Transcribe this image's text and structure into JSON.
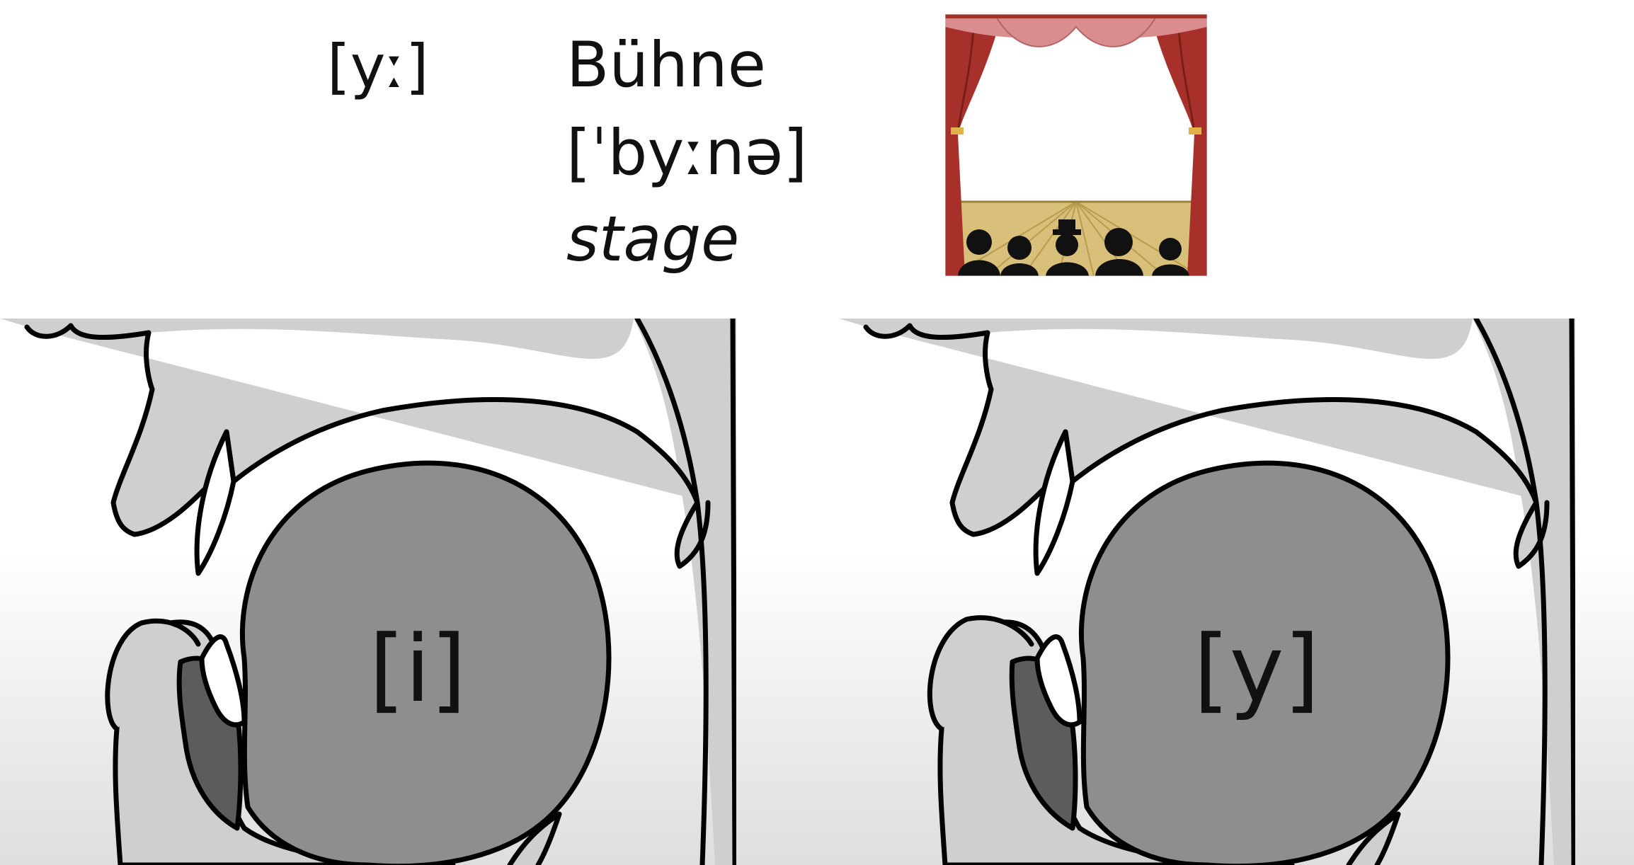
{
  "header": {
    "ipa_symbol": "[yː]",
    "word": "Bühne",
    "word_ipa": "[ˈbyːnə]",
    "gloss": "stage"
  },
  "diagrams": [
    {
      "label": "[i]"
    },
    {
      "label": "[y]"
    }
  ],
  "colors": {
    "skin": "#cfcfcf",
    "tongue": "#8e8e8e",
    "inner_lip": "#5c5c5c",
    "outline": "#000000",
    "curtain": "#a8302a",
    "valance": "#d98d8f",
    "stage_floor": "#d9c07a"
  },
  "icons": [
    "theater-stage-icon"
  ]
}
